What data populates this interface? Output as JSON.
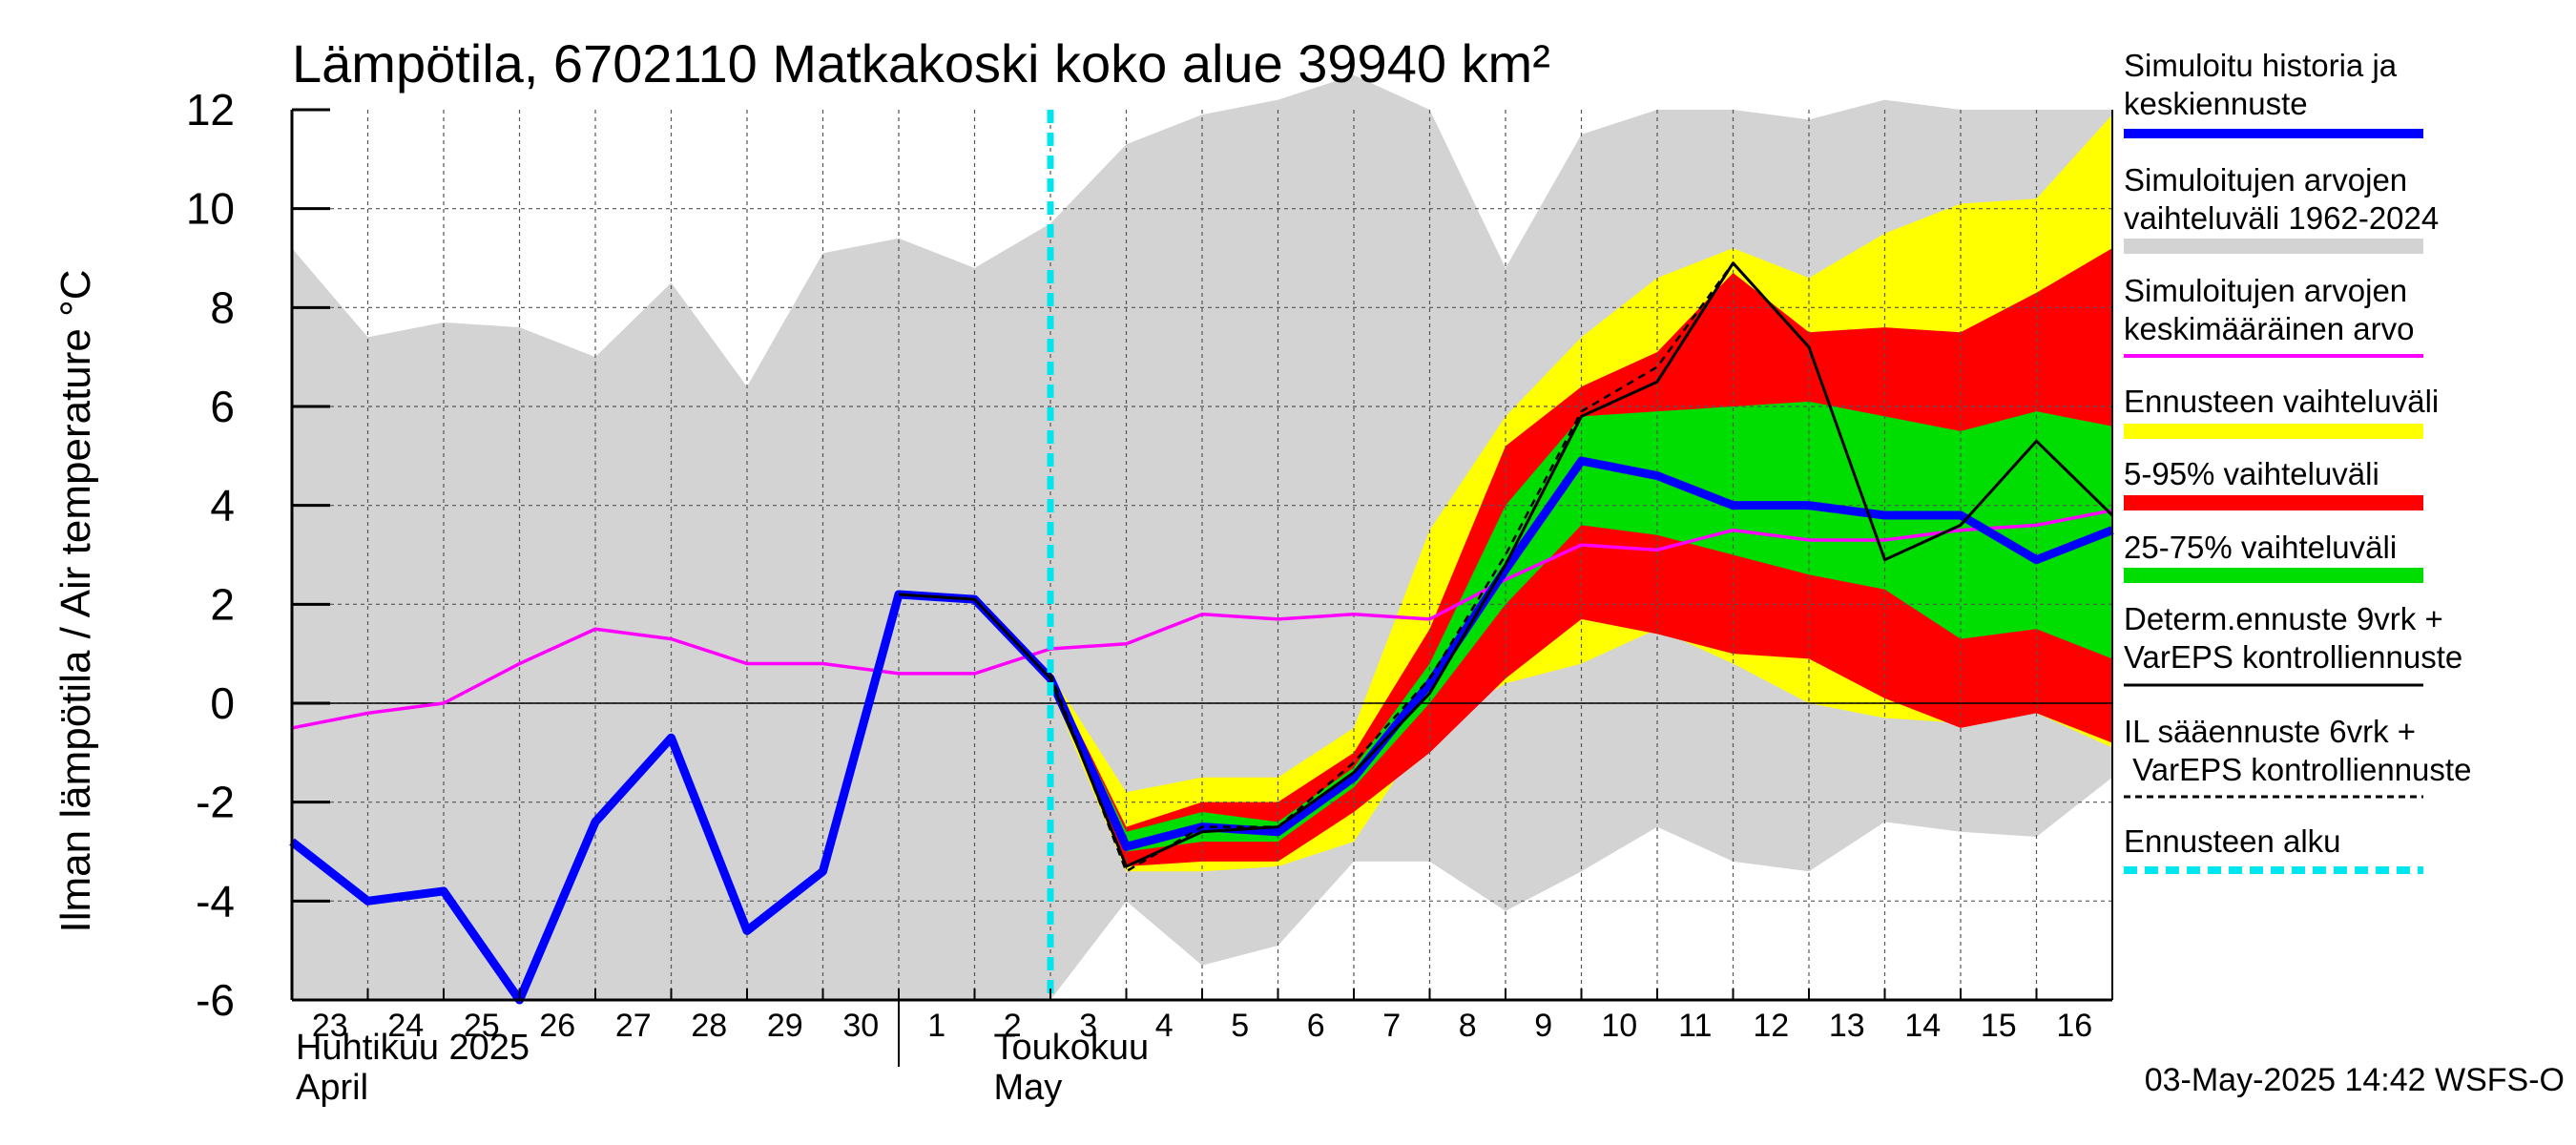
{
  "chart_data": {
    "type": "area",
    "title": "Lämpötila, 6702110 Matkakoski koko alue 39940 km²",
    "ylabel": "Ilman lämpötila / Air temperature   °C",
    "ylim": [
      -6,
      12
    ],
    "yticks": [
      -6,
      -4,
      -2,
      0,
      2,
      4,
      6,
      8,
      10,
      12
    ],
    "grid": true,
    "legend_position": "right",
    "x_day_labels": [
      "23",
      "24",
      "25",
      "26",
      "27",
      "28",
      "29",
      "30",
      "1",
      "2",
      "3",
      "4",
      "5",
      "6",
      "7",
      "8",
      "9",
      "10",
      "11",
      "12",
      "13",
      "14",
      "15",
      "16"
    ],
    "month_labels": [
      {
        "fi": "Huhtikuu  2025",
        "en": "April"
      },
      {
        "fi": "Toukokuu",
        "en": "May"
      }
    ],
    "forecast_start_day_index": 10,
    "timestamp": "03-May-2025 14:42 WSFS-O",
    "legend": [
      {
        "label": "Simuloitu historia ja keskiennuste",
        "color": "#0000ff",
        "style": "thick-line"
      },
      {
        "label": "Simuloitujen arvojen vaihteluväli 1962-2024",
        "color": "#d3d3d3",
        "style": "band"
      },
      {
        "label": "Simuloitujen arvojen keskimääräinen arvo",
        "color": "#ff00ff",
        "style": "line"
      },
      {
        "label": "Ennusteen vaihteluväli",
        "color": "#ffff00",
        "style": "band"
      },
      {
        "label": "5-95% vaihteluväli",
        "color": "#ff0000",
        "style": "band"
      },
      {
        "label": "25-75% vaihteluväli",
        "color": "#00dd00",
        "style": "band"
      },
      {
        "label": "Determ.ennuste 9vrk + VarEPS kontrolliennuste",
        "color": "#000000",
        "style": "line"
      },
      {
        "label": "IL sääennuste 6vrk  + VarEPS kontrolliennuste",
        "color": "#000000",
        "style": "dashed"
      },
      {
        "label": "Ennusteen alku",
        "color": "#00e5ee",
        "style": "dashed-thick"
      }
    ],
    "series": [
      {
        "name": "Simuloitujen arvojen vaihteluväli 1962-2024",
        "kind": "band",
        "color": "#d3d3d3",
        "x": [
          0,
          1,
          2,
          3,
          4,
          5,
          6,
          7,
          8,
          9,
          10,
          11,
          12,
          13,
          14,
          15,
          16,
          17,
          18,
          19,
          20,
          21,
          22,
          23,
          24
        ],
        "upper": [
          9.2,
          7.4,
          7.7,
          7.6,
          7.0,
          8.5,
          6.4,
          9.1,
          9.4,
          8.8,
          9.7,
          11.3,
          11.9,
          12.2,
          12.7,
          12.0,
          8.8,
          11.5,
          12.0,
          12.0,
          11.8,
          12.2,
          12.0,
          12.0,
          12.0
        ],
        "lower": [
          -6.0,
          -6.0,
          -6.0,
          -6.0,
          -6.0,
          -6.0,
          -6.0,
          -6.0,
          -6.0,
          -6.0,
          -6.0,
          -4.0,
          -5.3,
          -4.9,
          -3.2,
          -3.2,
          -4.2,
          -3.4,
          -2.5,
          -3.2,
          -3.4,
          -2.4,
          -2.6,
          -2.7,
          -1.5
        ]
      },
      {
        "name": "Ennusteen vaihteluväli",
        "kind": "band",
        "color": "#ffff00",
        "x": [
          10,
          11,
          12,
          13,
          14,
          15,
          16,
          17,
          18,
          19,
          20,
          21,
          22,
          23,
          24
        ],
        "upper": [
          0.6,
          -1.8,
          -1.5,
          -1.5,
          -0.5,
          3.5,
          5.8,
          7.4,
          8.6,
          9.2,
          8.6,
          9.5,
          10.1,
          10.2,
          11.9
        ],
        "lower": [
          0.3,
          -3.4,
          -3.4,
          -3.3,
          -2.8,
          -0.5,
          0.4,
          0.8,
          1.5,
          0.8,
          0.0,
          -0.3,
          -0.4,
          -0.2,
          -0.9
        ]
      },
      {
        "name": "5-95% vaihteluväli",
        "kind": "band",
        "color": "#ff0000",
        "x": [
          10,
          11,
          12,
          13,
          14,
          15,
          16,
          17,
          18,
          19,
          20,
          21,
          22,
          23,
          24
        ],
        "upper": [
          0.6,
          -2.5,
          -2.0,
          -2.0,
          -1.0,
          1.5,
          5.2,
          6.4,
          7.1,
          8.7,
          7.5,
          7.6,
          7.5,
          8.3,
          9.2
        ],
        "lower": [
          0.4,
          -3.3,
          -3.2,
          -3.2,
          -2.2,
          -1.0,
          0.5,
          1.7,
          1.4,
          1.0,
          0.9,
          0.1,
          -0.5,
          -0.2,
          -0.8
        ]
      },
      {
        "name": "25-75% vaihteluväli",
        "kind": "band",
        "color": "#00dd00",
        "x": [
          10,
          11,
          12,
          13,
          14,
          15,
          16,
          17,
          18,
          19,
          20,
          21,
          22,
          23,
          24
        ],
        "upper": [
          0.6,
          -2.6,
          -2.2,
          -2.4,
          -1.3,
          0.8,
          4.0,
          5.8,
          5.9,
          6.0,
          6.1,
          5.8,
          5.5,
          5.9,
          5.6
        ],
        "lower": [
          0.5,
          -3.0,
          -2.8,
          -2.8,
          -1.7,
          0.0,
          2.0,
          3.6,
          3.4,
          3.0,
          2.6,
          2.3,
          1.3,
          1.5,
          0.9
        ]
      },
      {
        "name": "Simuloitujen arvojen keskimääräinen arvo",
        "kind": "line",
        "color": "#ff00ff",
        "x": [
          0,
          1,
          2,
          3,
          4,
          5,
          6,
          7,
          8,
          9,
          10,
          11,
          12,
          13,
          14,
          15,
          16,
          17,
          18,
          19,
          20,
          21,
          22,
          23,
          24
        ],
        "values": [
          -0.5,
          -0.2,
          0.0,
          0.8,
          1.5,
          1.3,
          0.8,
          0.8,
          0.6,
          0.6,
          1.1,
          1.2,
          1.8,
          1.7,
          1.8,
          1.7,
          2.5,
          3.2,
          3.1,
          3.5,
          3.3,
          3.3,
          3.5,
          3.6,
          3.9
        ]
      },
      {
        "name": "Simuloitu historia ja keskiennuste",
        "kind": "line",
        "color": "#0000ff",
        "x": [
          0,
          1,
          2,
          3,
          4,
          5,
          6,
          7,
          8,
          9,
          10,
          11,
          12,
          13,
          14,
          15,
          16,
          17,
          18,
          19,
          20,
          21,
          22,
          23,
          24
        ],
        "values": [
          -2.8,
          -4.0,
          -3.8,
          -6.0,
          -2.4,
          -0.7,
          -4.6,
          -3.4,
          2.2,
          2.1,
          0.5,
          -2.9,
          -2.5,
          -2.6,
          -1.5,
          0.4,
          2.7,
          4.9,
          4.6,
          4.0,
          4.0,
          3.8,
          3.8,
          2.9,
          3.5
        ]
      },
      {
        "name": "Determ.ennuste 9vrk + VarEPS kontrolliennuste",
        "kind": "line",
        "color": "#000000",
        "x": [
          8,
          9,
          10,
          11,
          12,
          13,
          14,
          15,
          16,
          17,
          18,
          19,
          20,
          21,
          22,
          23,
          24
        ],
        "values": [
          2.2,
          2.1,
          0.5,
          -3.3,
          -2.6,
          -2.5,
          -1.4,
          0.2,
          2.8,
          5.8,
          6.5,
          8.9,
          7.2,
          2.9,
          3.6,
          5.3,
          3.8
        ]
      },
      {
        "name": "IL sääennuste 6vrk  + VarEPS kontrolliennuste",
        "kind": "dashed",
        "color": "#000000",
        "x": [
          10,
          11,
          12,
          13,
          14,
          15,
          16,
          17,
          18,
          19
        ],
        "values": [
          0.6,
          -3.4,
          -2.5,
          -2.5,
          -1.2,
          0.5,
          3.0,
          5.9,
          6.8,
          8.9
        ]
      }
    ]
  }
}
